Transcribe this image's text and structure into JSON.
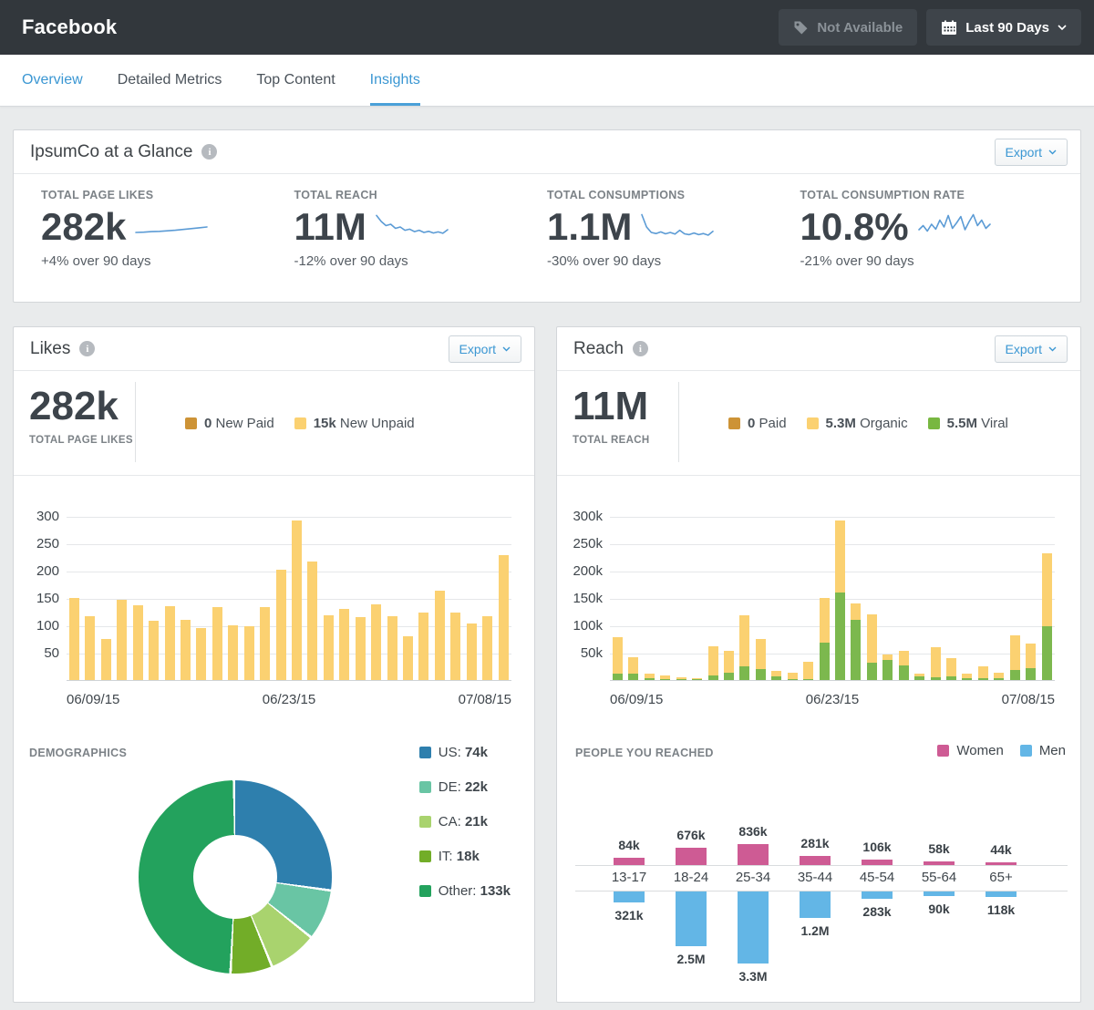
{
  "header": {
    "title": "Facebook",
    "not_available_label": "Not Available",
    "date_range_label": "Last 90 Days"
  },
  "tabs": [
    {
      "label": "Overview",
      "active": false,
      "link": true
    },
    {
      "label": "Detailed Metrics",
      "active": false,
      "link": false
    },
    {
      "label": "Top Content",
      "active": false,
      "link": false
    },
    {
      "label": "Insights",
      "active": true,
      "link": false
    }
  ],
  "glance": {
    "title": "IpsumCo at a Glance",
    "export_label": "Export",
    "kpis": [
      {
        "label": "TOTAL PAGE LIKES",
        "value": "282k",
        "delta": "+4% over 90 days",
        "spark_id": "page_likes"
      },
      {
        "label": "TOTAL REACH",
        "value": "11M",
        "delta": "-12% over 90 days",
        "spark_id": "reach"
      },
      {
        "label": "TOTAL CONSUMPTIONS",
        "value": "1.1M",
        "delta": "-30% over 90 days",
        "spark_id": "consumptions"
      },
      {
        "label": "TOTAL CONSUMPTION RATE",
        "value": "10.8%",
        "delta": "-21% over 90 days",
        "spark_id": "consumption_rate"
      }
    ]
  },
  "likes_card": {
    "title": "Likes",
    "export_label": "Export",
    "total_value": "282k",
    "total_label": "TOTAL PAGE LIKES",
    "legend": [
      {
        "value": "0",
        "label": "New Paid",
        "color": "#cd9336"
      },
      {
        "value": "15k",
        "label": "New Unpaid",
        "color": "#fbd171"
      }
    ],
    "demographics_title": "DEMOGRAPHICS"
  },
  "reach_card": {
    "title": "Reach",
    "export_label": "Export",
    "total_value": "11M",
    "total_label": "TOTAL REACH",
    "legend": [
      {
        "value": "0",
        "label": "Paid",
        "color": "#cd9336"
      },
      {
        "value": "5.3M",
        "label": "Organic",
        "color": "#fbd171"
      },
      {
        "value": "5.5M",
        "label": "Viral",
        "color": "#78b741"
      }
    ],
    "people_title": "PEOPLE YOU REACHED",
    "people_legend": [
      {
        "label": "Women",
        "color": "#ce5b94"
      },
      {
        "label": "Men",
        "color": "#63b6e6"
      }
    ]
  },
  "chart_data": [
    {
      "id": "likes_new",
      "type": "bar",
      "title": "New unpaid likes per day",
      "x_labels": [
        "06/09/15",
        "06/23/15",
        "07/08/15"
      ],
      "ylim": [
        0,
        300
      ],
      "yticks": [
        {
          "v": 50,
          "label": "50"
        },
        {
          "v": 100,
          "label": "100"
        },
        {
          "v": 150,
          "label": "150"
        },
        {
          "v": 200,
          "label": "200"
        },
        {
          "v": 250,
          "label": "250"
        },
        {
          "v": 300,
          "label": "300"
        }
      ],
      "bar_color": "#fbd171",
      "values": [
        150,
        116,
        75,
        146,
        137,
        108,
        135,
        110,
        95,
        134,
        100,
        98,
        133,
        202,
        291,
        217,
        119,
        130,
        115,
        139,
        117,
        80,
        123,
        164,
        124,
        103,
        117,
        229
      ]
    },
    {
      "id": "reach_daily",
      "type": "bar",
      "stacked": true,
      "title": "Daily reach (thousands)",
      "x_labels": [
        "06/09/15",
        "06/23/15",
        "07/08/15"
      ],
      "ylim": [
        0,
        300
      ],
      "yticks": [
        {
          "v": 50,
          "label": "50k"
        },
        {
          "v": 100,
          "label": "100k"
        },
        {
          "v": 150,
          "label": "150k"
        },
        {
          "v": 200,
          "label": "200k"
        },
        {
          "v": 250,
          "label": "250k"
        },
        {
          "v": 300,
          "label": "300k"
        }
      ],
      "series": [
        {
          "name": "Viral",
          "color": "#7cb84e",
          "values": [
            12,
            11,
            3,
            2,
            2,
            1,
            8,
            13,
            25,
            20,
            6,
            2,
            1,
            68,
            160,
            110,
            32,
            36,
            27,
            7,
            5,
            6,
            3,
            4,
            3,
            18,
            21,
            98
          ]
        },
        {
          "name": "Organic",
          "color": "#fbd171",
          "values": [
            66,
            31,
            8,
            6,
            3,
            3,
            54,
            41,
            93,
            55,
            11,
            11,
            32,
            82,
            132,
            30,
            88,
            10,
            26,
            4,
            55,
            34,
            9,
            21,
            10,
            64,
            46,
            133
          ]
        }
      ]
    },
    {
      "id": "demographics",
      "type": "pie",
      "donut": true,
      "title": "DEMOGRAPHICS",
      "labels": [
        "US",
        "DE",
        "CA",
        "IT",
        "Other"
      ],
      "display_values": [
        "74k",
        "22k",
        "21k",
        "18k",
        "133k"
      ],
      "values_k": [
        74,
        22,
        21,
        18,
        133
      ],
      "colors": [
        "#2e7fad",
        "#69c5a4",
        "#a9d36e",
        "#72ad28",
        "#23a25d"
      ]
    },
    {
      "id": "people_reached",
      "type": "bar",
      "subtype": "pyramid",
      "title": "PEOPLE YOU REACHED",
      "categories": [
        "13-17",
        "18-24",
        "25-34",
        "35-44",
        "45-54",
        "55-64",
        "65+"
      ],
      "series": [
        {
          "name": "Women",
          "color": "#ce5b94",
          "labels": [
            "84k",
            "676k",
            "836k",
            "281k",
            "106k",
            "58k",
            "44k"
          ],
          "values_k": [
            84,
            676,
            836,
            281,
            106,
            58,
            44
          ]
        },
        {
          "name": "Men",
          "color": "#63b6e6",
          "labels": [
            "321k",
            "2.5M",
            "3.3M",
            "1.2M",
            "283k",
            "90k",
            "118k"
          ],
          "values_k": [
            321,
            2500,
            3300,
            1200,
            283,
            90,
            118
          ]
        }
      ]
    },
    {
      "id": "sparklines",
      "type": "line",
      "color": "#5b9bd5",
      "series": [
        {
          "name": "page_likes",
          "points": [
            0.3,
            0.31,
            0.33,
            0.34,
            0.36,
            0.38,
            0.41,
            0.44,
            0.47,
            0.5
          ]
        },
        {
          "name": "reach",
          "points": [
            0.92,
            0.7,
            0.55,
            0.6,
            0.45,
            0.5,
            0.38,
            0.42,
            0.33,
            0.38,
            0.3,
            0.34,
            0.28,
            0.32,
            0.27,
            0.4
          ]
        },
        {
          "name": "consumptions",
          "points": [
            0.95,
            0.5,
            0.3,
            0.26,
            0.32,
            0.25,
            0.3,
            0.24,
            0.38,
            0.25,
            0.22,
            0.28,
            0.22,
            0.26,
            0.2,
            0.34
          ]
        },
        {
          "name": "consumption_rate",
          "points": [
            0.4,
            0.55,
            0.35,
            0.6,
            0.42,
            0.75,
            0.5,
            0.92,
            0.45,
            0.65,
            0.88,
            0.4,
            0.7,
            0.95,
            0.55,
            0.75,
            0.45,
            0.6
          ]
        }
      ]
    }
  ]
}
